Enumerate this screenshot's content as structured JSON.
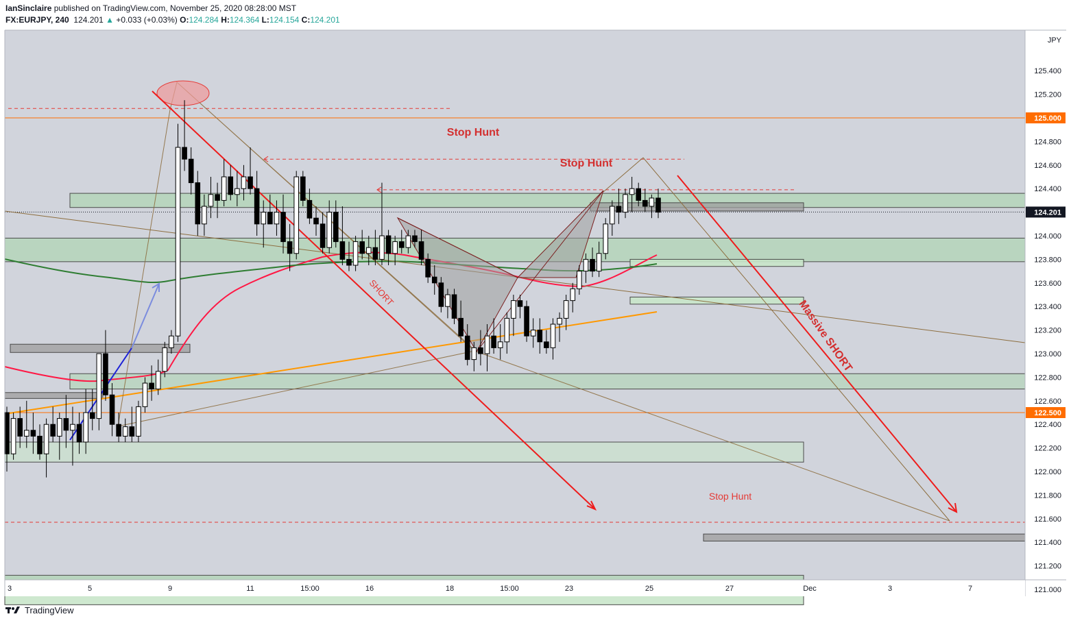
{
  "header": {
    "author": "IanSinclaire",
    "published_text": "published on TradingView.com, November 25, 2020 08:28:00 MST",
    "symbol": "FX:EURJPY, 240",
    "last": "124.201",
    "change": "+0.033 (+0.03%)",
    "o_label": "O:",
    "o": "124.284",
    "h_label": "H:",
    "h": "124.364",
    "l_label": "L:",
    "l": "124.154",
    "c_label": "C:",
    "c": "124.201"
  },
  "footer": {
    "brand": "TradingView"
  },
  "colors": {
    "background": "#d1d4dc",
    "up": "#ffffff",
    "down": "#000000",
    "annotation_red": "#e53935",
    "zone_green": "#a5d6a7",
    "ma_red": "#ff1744",
    "ma_green": "#2e7d32",
    "ma_orange": "#ff9800",
    "highlight_up": "#26a69a"
  },
  "chart_data": {
    "type": "candlestick",
    "currency_label": "JPY",
    "ylim": [
      120.85,
      125.55
    ],
    "y_ticks": [
      "125.400",
      "125.200",
      "125.000",
      "124.800",
      "124.600",
      "124.400",
      "124.201",
      "124.000",
      "123.800",
      "123.600",
      "123.400",
      "123.200",
      "123.000",
      "122.800",
      "122.600",
      "122.500",
      "122.400",
      "122.200",
      "122.000",
      "121.800",
      "121.600",
      "121.400",
      "121.200",
      "121.000"
    ],
    "highlighted_prices": [
      {
        "label": "125.000",
        "value": 125.0,
        "color": "#ff6d00"
      },
      {
        "label": "124.201",
        "value": 124.201,
        "color": "#131722"
      },
      {
        "label": "122.500",
        "value": 122.5,
        "color": "#ff6d00"
      }
    ],
    "x_ticks": [
      "3",
      "5",
      "9",
      "11",
      "15:00",
      "16",
      "18",
      "15:00",
      "23",
      "25",
      "27",
      "Dec",
      "3",
      "7"
    ],
    "annotations": [
      "Stop Hunt",
      "Stop Hunt",
      "Stop Hunt",
      "SHORT",
      "Massive SHORT"
    ],
    "candles": [
      [
        122.5,
        122.55,
        122.0,
        122.15
      ],
      [
        122.15,
        122.5,
        122.1,
        122.45
      ],
      [
        122.45,
        122.55,
        122.2,
        122.3
      ],
      [
        122.3,
        122.6,
        122.2,
        122.35
      ],
      [
        122.35,
        122.5,
        122.15,
        122.3
      ],
      [
        122.3,
        122.4,
        122.1,
        122.15
      ],
      [
        122.15,
        122.45,
        121.95,
        122.4
      ],
      [
        122.4,
        122.55,
        122.25,
        122.3
      ],
      [
        122.3,
        122.5,
        122.1,
        122.45
      ],
      [
        122.45,
        122.65,
        122.2,
        122.35
      ],
      [
        122.35,
        122.55,
        122.05,
        122.4
      ],
      [
        122.4,
        122.5,
        122.15,
        122.25
      ],
      [
        122.25,
        122.7,
        122.15,
        122.5
      ],
      [
        122.5,
        122.7,
        122.35,
        122.45
      ],
      [
        122.45,
        123.0,
        122.35,
        123.0
      ],
      [
        123.0,
        123.2,
        122.6,
        122.65
      ],
      [
        122.65,
        122.75,
        122.3,
        122.4
      ],
      [
        122.4,
        122.5,
        122.25,
        122.3
      ],
      [
        122.3,
        122.45,
        122.25,
        122.38
      ],
      [
        122.38,
        122.55,
        122.25,
        122.3
      ],
      [
        122.3,
        122.6,
        122.25,
        122.55
      ],
      [
        122.55,
        122.8,
        122.5,
        122.75
      ],
      [
        122.75,
        122.9,
        122.6,
        122.7
      ],
      [
        122.7,
        122.95,
        122.65,
        122.85
      ],
      [
        122.85,
        123.1,
        122.8,
        123.05
      ],
      [
        123.05,
        123.2,
        123.0,
        123.15
      ],
      [
        123.15,
        124.95,
        123.1,
        124.75
      ],
      [
        124.75,
        125.15,
        124.55,
        124.65
      ],
      [
        124.65,
        124.75,
        124.35,
        124.45
      ],
      [
        124.45,
        124.55,
        124.0,
        124.1
      ],
      [
        124.1,
        124.35,
        124.0,
        124.25
      ],
      [
        124.25,
        124.5,
        124.15,
        124.35
      ],
      [
        124.35,
        124.45,
        124.15,
        124.3
      ],
      [
        124.3,
        124.65,
        124.25,
        124.5
      ],
      [
        124.5,
        124.6,
        124.3,
        124.35
      ],
      [
        124.35,
        124.55,
        124.25,
        124.4
      ],
      [
        124.4,
        124.6,
        124.3,
        124.5
      ],
      [
        124.5,
        124.75,
        124.35,
        124.4
      ],
      [
        124.4,
        124.55,
        124.0,
        124.1
      ],
      [
        124.1,
        124.3,
        123.9,
        124.2
      ],
      [
        124.2,
        124.35,
        124.1,
        124.1
      ],
      [
        124.1,
        124.3,
        124.0,
        124.2
      ],
      [
        124.2,
        124.35,
        123.85,
        123.95
      ],
      [
        123.95,
        124.1,
        123.7,
        123.85
      ],
      [
        123.85,
        124.55,
        123.8,
        124.5
      ],
      [
        124.5,
        124.55,
        124.25,
        124.3
      ],
      [
        124.3,
        124.4,
        124.1,
        124.15
      ],
      [
        124.15,
        124.25,
        124.0,
        124.1
      ],
      [
        124.1,
        124.2,
        123.85,
        123.9
      ],
      [
        123.9,
        124.3,
        123.85,
        124.2
      ],
      [
        124.2,
        124.3,
        123.9,
        123.95
      ],
      [
        123.95,
        124.25,
        123.75,
        123.8
      ],
      [
        123.8,
        123.95,
        123.7,
        123.75
      ],
      [
        123.75,
        124.0,
        123.7,
        123.95
      ],
      [
        123.95,
        124.05,
        123.8,
        123.85
      ],
      [
        123.85,
        124.0,
        123.75,
        123.9
      ],
      [
        123.9,
        124.05,
        123.75,
        123.8
      ],
      [
        123.8,
        124.45,
        123.75,
        124.0
      ],
      [
        124.0,
        124.05,
        123.75,
        123.85
      ],
      [
        123.85,
        124.0,
        123.75,
        123.95
      ],
      [
        123.95,
        124.05,
        123.85,
        123.9
      ],
      [
        123.9,
        124.05,
        123.85,
        124.0
      ],
      [
        124.0,
        124.05,
        123.9,
        123.95
      ],
      [
        123.95,
        124.05,
        123.75,
        123.8
      ],
      [
        123.8,
        123.85,
        123.6,
        123.65
      ],
      [
        123.65,
        123.75,
        123.5,
        123.6
      ],
      [
        123.6,
        123.65,
        123.35,
        123.4
      ],
      [
        123.4,
        123.55,
        123.3,
        123.5
      ],
      [
        123.5,
        123.55,
        123.25,
        123.3
      ],
      [
        123.3,
        123.45,
        123.1,
        123.15
      ],
      [
        123.15,
        123.25,
        122.9,
        122.95
      ],
      [
        122.95,
        123.1,
        122.85,
        123.05
      ],
      [
        123.05,
        123.2,
        122.9,
        123.0
      ],
      [
        123.0,
        123.25,
        122.85,
        123.15
      ],
      [
        123.15,
        123.3,
        123.0,
        123.05
      ],
      [
        123.05,
        123.25,
        122.95,
        123.1
      ],
      [
        123.1,
        123.35,
        123.0,
        123.3
      ],
      [
        123.3,
        123.5,
        123.15,
        123.45
      ],
      [
        123.45,
        123.5,
        123.3,
        123.4
      ],
      [
        123.4,
        123.45,
        123.1,
        123.15
      ],
      [
        123.15,
        123.3,
        123.05,
        123.2
      ],
      [
        123.2,
        123.3,
        123.0,
        123.1
      ],
      [
        123.1,
        123.2,
        123.0,
        123.05
      ],
      [
        123.05,
        123.3,
        122.95,
        123.25
      ],
      [
        123.25,
        123.35,
        123.1,
        123.3
      ],
      [
        123.3,
        123.5,
        123.2,
        123.45
      ],
      [
        123.45,
        123.6,
        123.35,
        123.55
      ],
      [
        123.55,
        123.75,
        123.5,
        123.7
      ],
      [
        123.7,
        123.85,
        123.6,
        123.8
      ],
      [
        123.8,
        123.9,
        123.65,
        123.7
      ],
      [
        123.7,
        123.95,
        123.65,
        123.85
      ],
      [
        123.85,
        124.15,
        123.8,
        124.1
      ],
      [
        124.1,
        124.3,
        124.0,
        124.25
      ],
      [
        124.25,
        124.4,
        124.1,
        124.2
      ],
      [
        124.2,
        124.4,
        124.15,
        124.35
      ],
      [
        124.35,
        124.5,
        124.2,
        124.4
      ],
      [
        124.4,
        124.45,
        124.25,
        124.3
      ],
      [
        124.3,
        124.4,
        124.2,
        124.25
      ],
      [
        124.25,
        124.35,
        124.15,
        124.32
      ],
      [
        124.32,
        124.4,
        124.15,
        124.2
      ]
    ]
  }
}
